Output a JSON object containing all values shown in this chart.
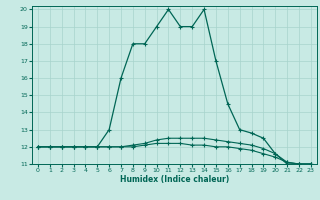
{
  "xlabel": "Humidex (Indice chaleur)",
  "bg_color": "#c8eae4",
  "grid_color": "#a8d4cc",
  "line_color": "#006655",
  "xlim": [
    -0.5,
    23.5
  ],
  "ylim": [
    11,
    20.2
  ],
  "xticks": [
    0,
    1,
    2,
    3,
    4,
    5,
    6,
    7,
    8,
    9,
    10,
    11,
    12,
    13,
    14,
    15,
    16,
    17,
    18,
    19,
    20,
    21,
    22,
    23
  ],
  "yticks": [
    11,
    12,
    13,
    14,
    15,
    16,
    17,
    18,
    19,
    20
  ],
  "line_main_x": [
    0,
    1,
    2,
    3,
    4,
    5,
    6,
    7,
    8,
    9,
    10,
    11,
    12,
    13,
    14,
    15,
    16,
    17,
    18,
    19,
    20,
    21,
    22,
    23
  ],
  "line_main_y": [
    12,
    12,
    12,
    12,
    12,
    12,
    13,
    16,
    18,
    18,
    19,
    20,
    19,
    19,
    20,
    17,
    14.5,
    13,
    12.8,
    12.5,
    11.6,
    11.0,
    11.0,
    11.0
  ],
  "line_mid_x": [
    0,
    1,
    2,
    3,
    4,
    5,
    6,
    7,
    8,
    9,
    10,
    11,
    12,
    13,
    14,
    15,
    16,
    17,
    18,
    19,
    20,
    21,
    22,
    23
  ],
  "line_mid_y": [
    12,
    12,
    12,
    12,
    12,
    12,
    12,
    12,
    12.1,
    12.2,
    12.4,
    12.5,
    12.5,
    12.5,
    12.5,
    12.4,
    12.3,
    12.2,
    12.1,
    11.9,
    11.6,
    11.1,
    11.0,
    11.0
  ],
  "line_low_x": [
    0,
    1,
    2,
    3,
    4,
    5,
    6,
    7,
    8,
    9,
    10,
    11,
    12,
    13,
    14,
    15,
    16,
    17,
    18,
    19,
    20,
    21,
    22,
    23
  ],
  "line_low_y": [
    12,
    12,
    12,
    12,
    12,
    12,
    12,
    12,
    12,
    12.1,
    12.2,
    12.2,
    12.2,
    12.1,
    12.1,
    12.0,
    12.0,
    11.9,
    11.8,
    11.6,
    11.4,
    11.1,
    11.0,
    11.0
  ]
}
